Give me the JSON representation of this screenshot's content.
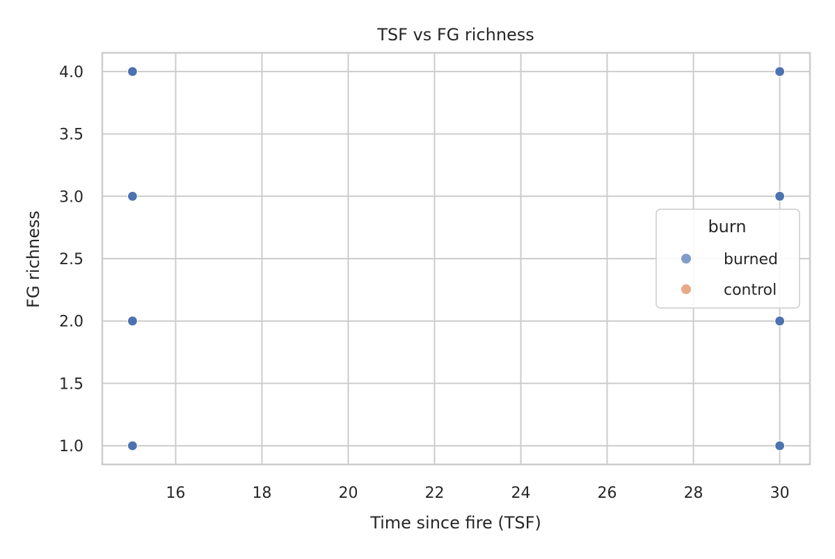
{
  "chart_data": {
    "type": "scatter",
    "title": "TSF vs FG richness",
    "xlabel": "Time since fire (TSF)",
    "ylabel": "FG richness",
    "xlim": [
      14.3,
      30.7
    ],
    "ylim": [
      0.85,
      4.15
    ],
    "xticks": [
      16,
      18,
      20,
      22,
      24,
      26,
      28,
      30
    ],
    "xtick_labels": [
      "16",
      "18",
      "20",
      "22",
      "24",
      "26",
      "28",
      "30"
    ],
    "yticks": [
      1.0,
      1.5,
      2.0,
      2.5,
      3.0,
      3.5,
      4.0
    ],
    "ytick_labels": [
      "1.0",
      "1.5",
      "2.0",
      "2.5",
      "3.0",
      "3.5",
      "4.0"
    ],
    "grid": true,
    "legend": {
      "title": "burn",
      "placement": "center-right",
      "entries": [
        {
          "label": "burned",
          "color": "#4c72b0"
        },
        {
          "label": "control",
          "color": "#dd8452"
        }
      ]
    },
    "series": [
      {
        "name": "burned",
        "color": "#4c72b0",
        "points": [
          {
            "x": 15,
            "y": 4.0
          },
          {
            "x": 15,
            "y": 3.0
          },
          {
            "x": 15,
            "y": 2.0
          },
          {
            "x": 15,
            "y": 1.0
          },
          {
            "x": 30,
            "y": 4.0
          },
          {
            "x": 30,
            "y": 3.0
          },
          {
            "x": 30,
            "y": 2.0
          },
          {
            "x": 30,
            "y": 1.0
          }
        ]
      },
      {
        "name": "control",
        "color": "#dd8452",
        "points": []
      }
    ]
  }
}
